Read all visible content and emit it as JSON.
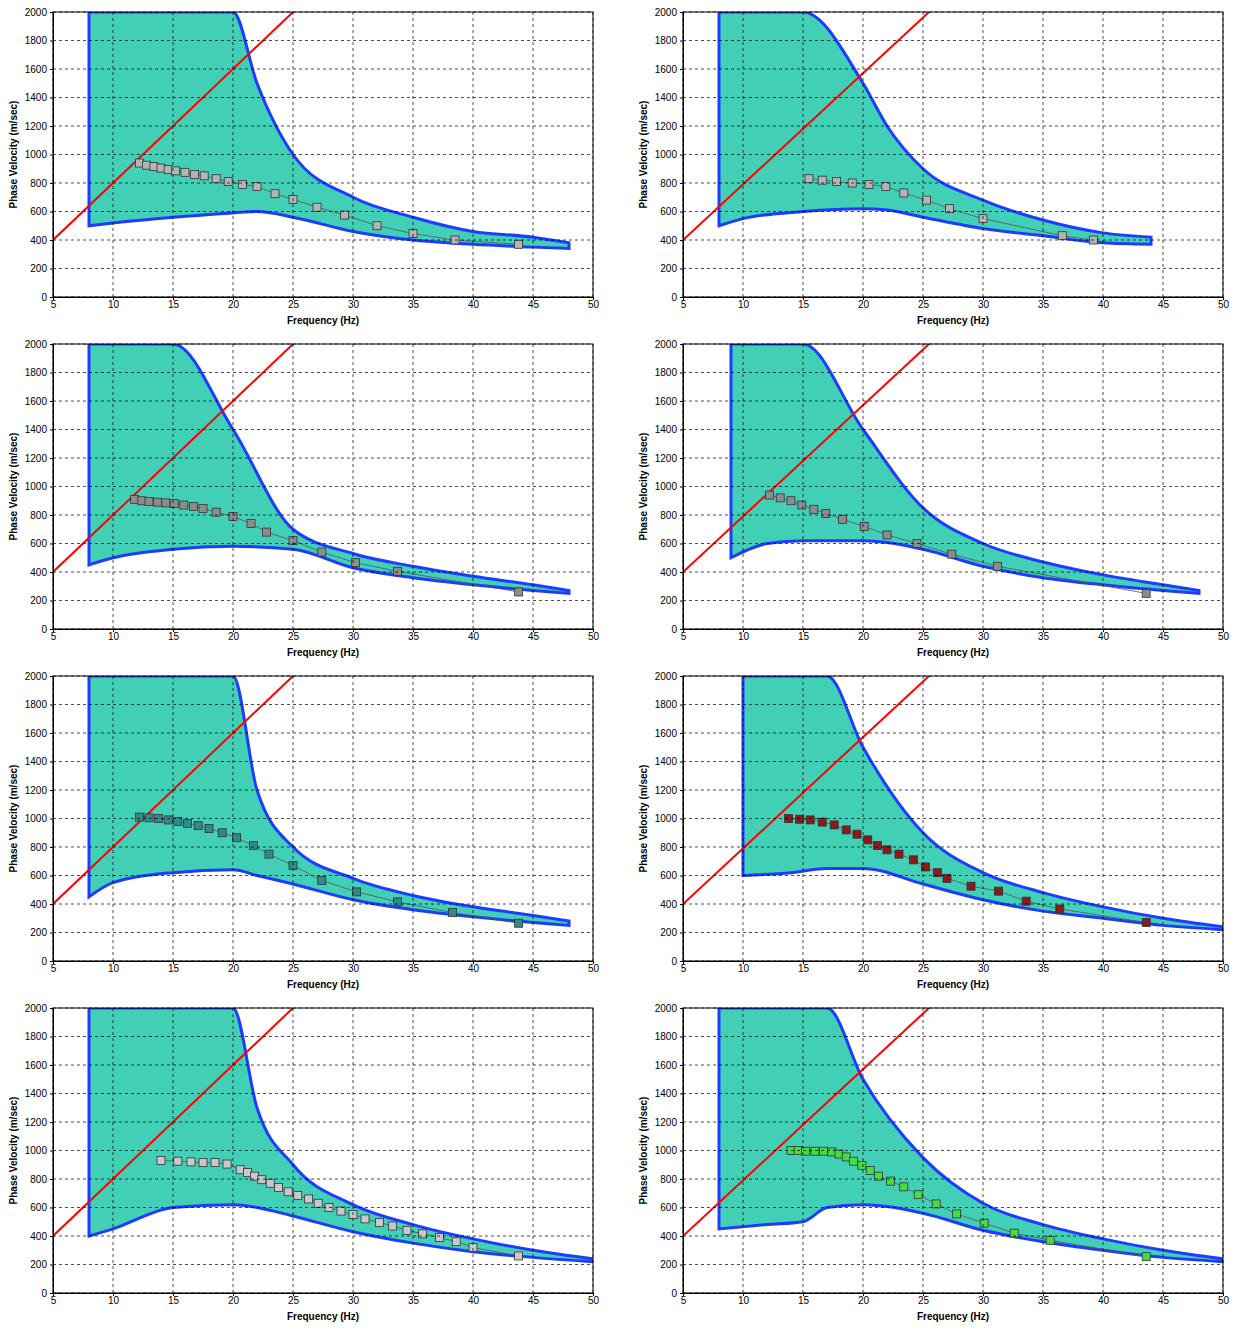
{
  "chart_data": [
    {
      "type": "scatter",
      "x_label": "Frequency (Hz)",
      "y_label": "Phase Velocity (m/sec)",
      "xlim": [
        5,
        50
      ],
      "ylim": [
        0,
        2000
      ],
      "xticks": [
        5,
        10,
        15,
        20,
        25,
        30,
        35,
        40,
        45,
        50
      ],
      "yticks": [
        0,
        200,
        400,
        600,
        800,
        1000,
        1200,
        1400,
        1600,
        1800,
        2000
      ],
      "grid": true,
      "series": [
        {
          "type": "area",
          "color": "#20c8a8",
          "x": [
            8,
            10,
            15,
            20,
            22,
            25,
            30,
            35,
            40,
            45,
            48
          ],
          "low": [
            500,
            520,
            560,
            590,
            600,
            560,
            460,
            400,
            370,
            350,
            340
          ],
          "high": [
            2000,
            2000,
            2000,
            2000,
            1500,
            1000,
            700,
            560,
            460,
            420,
            380
          ]
        },
        {
          "type": "line",
          "color": "#ff0000",
          "line_style": "solid",
          "x": [
            5,
            25
          ],
          "values": [
            400,
            2000
          ]
        },
        {
          "type": "line",
          "marker": "square",
          "line_style": "solid",
          "color": "#b4b4b4",
          "x": [
            12.2,
            12.8,
            13.4,
            14.0,
            14.6,
            15.2,
            16.0,
            16.8,
            17.6,
            18.6,
            19.6,
            20.8,
            22.0,
            23.5,
            25.0,
            27.0,
            29.3,
            32.0,
            35.0,
            38.5,
            43.8
          ],
          "values": [
            940,
            925,
            915,
            905,
            895,
            885,
            875,
            860,
            850,
            830,
            810,
            790,
            775,
            725,
            685,
            630,
            575,
            500,
            445,
            400,
            370
          ]
        }
      ]
    },
    {
      "type": "scatter",
      "x_label": "Frequency (Hz)",
      "y_label": "Phase Velocity (m/sec)",
      "xlim": [
        5,
        50
      ],
      "ylim": [
        0,
        2000
      ],
      "xticks": [
        5,
        10,
        15,
        20,
        25,
        30,
        35,
        40,
        45,
        50
      ],
      "yticks": [
        0,
        200,
        400,
        600,
        800,
        1000,
        1200,
        1400,
        1600,
        1800,
        2000
      ],
      "grid": true,
      "series": [
        {
          "type": "area",
          "color": "#20c8a8",
          "x": [
            8,
            10,
            15,
            20,
            22,
            25,
            30,
            35,
            40,
            44
          ],
          "low": [
            500,
            550,
            600,
            620,
            610,
            560,
            480,
            430,
            380,
            370
          ],
          "high": [
            2000,
            2000,
            2000,
            1500,
            1200,
            900,
            680,
            540,
            450,
            420
          ]
        },
        {
          "type": "line",
          "color": "#ff0000",
          "line_style": "solid",
          "x": [
            5,
            25.5
          ],
          "values": [
            400,
            2000
          ]
        },
        {
          "type": "line",
          "marker": "square",
          "line_style": "solid",
          "color": "#b4b4b4",
          "x": [
            15.5,
            16.6,
            17.8,
            19.1,
            20.5,
            21.9,
            23.4,
            25.3,
            27.2,
            30.0,
            36.6,
            39.2
          ],
          "values": [
            830,
            820,
            810,
            800,
            790,
            775,
            730,
            680,
            620,
            550,
            430,
            400
          ]
        }
      ]
    },
    {
      "type": "scatter",
      "x_label": "Frequency (Hz)",
      "y_label": "Phase Velocity (m/sec)",
      "xlim": [
        5,
        50
      ],
      "ylim": [
        0,
        2000
      ],
      "xticks": [
        5,
        10,
        15,
        20,
        25,
        30,
        35,
        40,
        45,
        50
      ],
      "yticks": [
        0,
        200,
        400,
        600,
        800,
        1000,
        1200,
        1400,
        1600,
        1800,
        2000
      ],
      "grid": true,
      "series": [
        {
          "type": "area",
          "color": "#20c8a8",
          "x": [
            8,
            10,
            15,
            20,
            25,
            30,
            35,
            40,
            45,
            48
          ],
          "low": [
            450,
            500,
            560,
            580,
            560,
            430,
            360,
            310,
            270,
            250
          ],
          "high": [
            2000,
            2000,
            2000,
            1400,
            700,
            530,
            440,
            370,
            310,
            270
          ]
        },
        {
          "type": "line",
          "color": "#ff0000",
          "line_style": "solid",
          "x": [
            5,
            25
          ],
          "values": [
            400,
            2000
          ]
        },
        {
          "type": "line",
          "marker": "square",
          "line_style": "solid",
          "color": "#8c8c8c",
          "x": [
            11.8,
            12.4,
            13.0,
            13.7,
            14.4,
            15.1,
            15.9,
            16.7,
            17.5,
            18.6,
            20.0,
            21.5,
            22.8,
            25.0,
            27.4,
            30.2,
            33.7,
            43.8
          ],
          "values": [
            910,
            900,
            895,
            890,
            885,
            880,
            870,
            860,
            845,
            820,
            790,
            740,
            680,
            620,
            540,
            465,
            405,
            260
          ]
        }
      ]
    },
    {
      "type": "scatter",
      "x_label": "Frequency (Hz)",
      "y_label": "Phase Velocity (m/sec)",
      "xlim": [
        5,
        50
      ],
      "ylim": [
        0,
        2000
      ],
      "xticks": [
        5,
        10,
        15,
        20,
        25,
        30,
        35,
        40,
        45,
        50
      ],
      "yticks": [
        0,
        200,
        400,
        600,
        800,
        1000,
        1200,
        1400,
        1600,
        1800,
        2000
      ],
      "grid": true,
      "series": [
        {
          "type": "area",
          "color": "#20c8a8",
          "x": [
            9,
            12,
            15,
            20,
            25,
            30,
            35,
            40,
            45,
            48
          ],
          "low": [
            500,
            600,
            620,
            620,
            560,
            440,
            360,
            310,
            270,
            250
          ],
          "high": [
            2000,
            2000,
            2000,
            1400,
            850,
            600,
            470,
            380,
            310,
            270
          ]
        },
        {
          "type": "line",
          "color": "#ff0000",
          "line_style": "solid",
          "x": [
            5,
            25.5
          ],
          "values": [
            400,
            2000
          ]
        },
        {
          "type": "line",
          "marker": "square",
          "line_style": "solid",
          "color": "#8c8c8c",
          "x": [
            12.2,
            13.1,
            14.0,
            14.9,
            15.9,
            16.9,
            18.3,
            20.1,
            22.0,
            24.5,
            27.4,
            31.2,
            43.6
          ],
          "values": [
            940,
            920,
            900,
            870,
            840,
            810,
            770,
            720,
            660,
            600,
            525,
            440,
            250
          ]
        }
      ]
    },
    {
      "type": "scatter",
      "x_label": "Frequency (Hz)",
      "y_label": "Phase Velocity (m/sec)",
      "xlim": [
        5,
        50
      ],
      "ylim": [
        0,
        2000
      ],
      "xticks": [
        5,
        10,
        15,
        20,
        25,
        30,
        35,
        40,
        45,
        50
      ],
      "yticks": [
        0,
        200,
        400,
        600,
        800,
        1000,
        1200,
        1400,
        1600,
        1800,
        2000
      ],
      "grid": true,
      "series": [
        {
          "type": "area",
          "color": "#20c8a8",
          "x": [
            8,
            10,
            15,
            20,
            22,
            25,
            30,
            35,
            40,
            45,
            48
          ],
          "low": [
            450,
            550,
            620,
            640,
            600,
            540,
            430,
            360,
            310,
            270,
            250
          ],
          "high": [
            2000,
            2000,
            2000,
            2000,
            1200,
            800,
            580,
            460,
            380,
            320,
            280
          ]
        },
        {
          "type": "line",
          "color": "#ff0000",
          "line_style": "solid",
          "x": [
            5,
            25
          ],
          "values": [
            400,
            2000
          ]
        },
        {
          "type": "line",
          "marker": "square",
          "line_style": "solid",
          "color": "#2e8b8b",
          "x": [
            12.2,
            13.0,
            13.8,
            14.6,
            15.4,
            16.2,
            17.1,
            18.0,
            19.1,
            20.3,
            21.7,
            23.0,
            25.0,
            27.4,
            30.3,
            33.7,
            38.3,
            43.8
          ],
          "values": [
            1010,
            1005,
            1000,
            990,
            980,
            965,
            950,
            930,
            900,
            865,
            810,
            750,
            670,
            565,
            485,
            415,
            340,
            265
          ]
        }
      ]
    },
    {
      "type": "scatter",
      "x_label": "Frequency (Hz)",
      "y_label": "Phase Velocity (m/sec)",
      "xlim": [
        5,
        50
      ],
      "ylim": [
        0,
        2000
      ],
      "xticks": [
        5,
        10,
        15,
        20,
        25,
        30,
        35,
        40,
        45,
        50
      ],
      "yticks": [
        0,
        200,
        400,
        600,
        800,
        1000,
        1200,
        1400,
        1600,
        1800,
        2000
      ],
      "grid": true,
      "series": [
        {
          "type": "area",
          "color": "#20c8a8",
          "x": [
            10,
            14,
            17,
            20,
            25,
            30,
            35,
            40,
            45,
            50
          ],
          "low": [
            600,
            620,
            650,
            650,
            540,
            430,
            350,
            300,
            250,
            220
          ],
          "high": [
            2000,
            2000,
            2000,
            1500,
            900,
            620,
            480,
            380,
            300,
            240
          ]
        },
        {
          "type": "line",
          "color": "#ff0000",
          "line_style": "solid",
          "x": [
            5,
            25.5
          ],
          "values": [
            400,
            2000
          ]
        },
        {
          "type": "line",
          "marker": "square",
          "line_style": "solid",
          "color": "#8b1a1a",
          "x": [
            13.8,
            14.7,
            15.6,
            16.6,
            17.6,
            18.6,
            19.5,
            20.4,
            21.2,
            22.0,
            23.0,
            24.2,
            25.2,
            26.2,
            27.0,
            29.0,
            31.3,
            33.6,
            36.4,
            43.6
          ],
          "values": [
            1000,
            995,
            990,
            975,
            955,
            920,
            890,
            850,
            810,
            780,
            750,
            710,
            660,
            620,
            580,
            525,
            490,
            420,
            365,
            270
          ]
        }
      ]
    },
    {
      "type": "scatter",
      "x_label": "Frequency (Hz)",
      "y_label": "Phase Velocity (m/sec)",
      "xlim": [
        5,
        50
      ],
      "ylim": [
        0,
        2000
      ],
      "xticks": [
        5,
        10,
        15,
        20,
        25,
        30,
        35,
        40,
        45,
        50
      ],
      "yticks": [
        0,
        200,
        400,
        600,
        800,
        1000,
        1200,
        1400,
        1600,
        1800,
        2000
      ],
      "grid": true,
      "series": [
        {
          "type": "area",
          "color": "#20c8a8",
          "x": [
            8,
            10,
            15,
            20,
            22,
            25,
            30,
            35,
            40,
            45,
            50
          ],
          "low": [
            400,
            450,
            600,
            620,
            600,
            540,
            430,
            350,
            290,
            250,
            220
          ],
          "high": [
            2000,
            2000,
            2000,
            2000,
            1300,
            900,
            620,
            480,
            380,
            300,
            240
          ]
        },
        {
          "type": "line",
          "color": "#ff0000",
          "line_style": "solid",
          "x": [
            5,
            25
          ],
          "values": [
            400,
            2000
          ]
        },
        {
          "type": "line",
          "marker": "square",
          "line_style": "solid",
          "color": "#c8c8c8",
          "x": [
            14,
            15.4,
            16.5,
            17.5,
            18.5,
            19.5,
            20.6,
            21.2,
            21.8,
            22.4,
            23.1,
            23.8,
            24.6,
            25.4,
            26.3,
            27.1,
            28,
            29,
            30,
            31,
            32.2,
            33.3,
            34.5,
            35.8,
            37.2,
            38.6,
            40,
            43.8
          ],
          "values": [
            930,
            925,
            920,
            915,
            915,
            905,
            865,
            845,
            820,
            795,
            770,
            740,
            710,
            685,
            660,
            630,
            600,
            575,
            550,
            520,
            495,
            470,
            440,
            415,
            390,
            360,
            320,
            260
          ]
        }
      ]
    },
    {
      "type": "scatter",
      "x_label": "Frequency (Hz)",
      "y_label": "Phase Velocity (m/sec)",
      "xlim": [
        5,
        50
      ],
      "ylim": [
        0,
        2000
      ],
      "xticks": [
        5,
        10,
        15,
        20,
        25,
        30,
        35,
        40,
        45,
        50
      ],
      "yticks": [
        0,
        200,
        400,
        600,
        800,
        1000,
        1200,
        1400,
        1600,
        1800,
        2000
      ],
      "grid": true,
      "series": [
        {
          "type": "area",
          "color": "#20c8a8",
          "x": [
            8,
            12,
            15,
            17,
            20,
            25,
            30,
            35,
            40,
            45,
            50
          ],
          "low": [
            450,
            480,
            500,
            600,
            620,
            560,
            440,
            360,
            300,
            250,
            220
          ],
          "high": [
            2000,
            2000,
            2000,
            2000,
            1500,
            950,
            630,
            480,
            380,
            300,
            240
          ]
        },
        {
          "type": "line",
          "color": "#ff0000",
          "line_style": "solid",
          "x": [
            5,
            25.5
          ],
          "values": [
            400,
            2000
          ]
        },
        {
          "type": "line",
          "marker": "square",
          "line_style": "solid",
          "color": "#44dd44",
          "x": [
            14,
            14.6,
            15.2,
            16,
            16.7,
            17.4,
            18,
            18.6,
            19.2,
            19.9,
            20.6,
            21.3,
            22.3,
            23.4,
            24.6,
            26.1,
            27.8,
            30.1,
            32.6,
            35.6,
            43.6
          ],
          "values": [
            1000,
            1000,
            995,
            995,
            995,
            990,
            975,
            955,
            925,
            895,
            860,
            820,
            785,
            745,
            690,
            625,
            555,
            490,
            420,
            370,
            255
          ]
        }
      ]
    }
  ]
}
